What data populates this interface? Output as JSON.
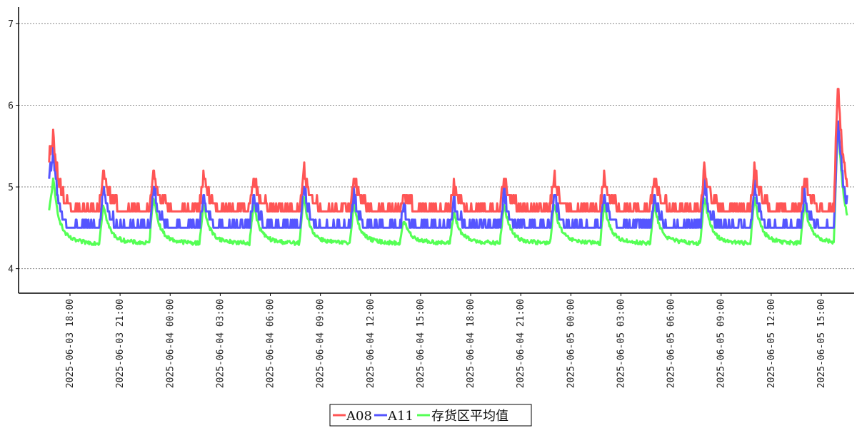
{
  "chart_data": {
    "type": "line",
    "title": "",
    "xlabel": "",
    "ylabel": "",
    "ylim": [
      3.7,
      7.2
    ],
    "yticks": [
      4,
      5,
      6,
      7
    ],
    "ygrid": "horizontal dotted",
    "legend_position": "bottom-center",
    "x_tick_labels": [
      "2025-06-03 18:00",
      "2025-06-03 21:00",
      "2025-06-04 00:00",
      "2025-06-04 03:00",
      "2025-06-04 06:00",
      "2025-06-04 09:00",
      "2025-06-04 12:00",
      "2025-06-04 15:00",
      "2025-06-04 18:00",
      "2025-06-04 21:00",
      "2025-06-05 00:00",
      "2025-06-05 03:00",
      "2025-06-05 06:00",
      "2025-06-05 09:00",
      "2025-06-05 12:00",
      "2025-06-05 15:00"
    ],
    "x_start": "2025-06-03 16:45",
    "x_end": "2025-06-05 16:35",
    "series": [
      {
        "name": "A08",
        "color": "#ff5555",
        "baseline": 4.7,
        "initial_level": 5.35,
        "peak_times": [
          "2025-06-03 17:00",
          "2025-06-03 20:00",
          "2025-06-03 23:00",
          "2025-06-04 02:00",
          "2025-06-04 05:00",
          "2025-06-04 08:00",
          "2025-06-04 11:00",
          "2025-06-04 14:00",
          "2025-06-04 17:00",
          "2025-06-04 20:00",
          "2025-06-04 23:00",
          "2025-06-05 02:00",
          "2025-06-05 05:00",
          "2025-06-05 08:00",
          "2025-06-05 11:00",
          "2025-06-05 14:00",
          "2025-06-05 16:00"
        ],
        "peak_values": [
          5.6,
          5.2,
          5.2,
          5.1,
          5.1,
          5.2,
          5.1,
          4.9,
          5.0,
          5.1,
          5.1,
          5.1,
          5.1,
          5.2,
          5.2,
          5.1,
          6.3
        ]
      },
      {
        "name": "A11",
        "color": "#5555ff",
        "baseline": 4.45,
        "initial_level": 5.1,
        "peak_times": [
          "2025-06-03 17:00",
          "2025-06-03 20:00",
          "2025-06-03 23:00",
          "2025-06-04 02:00",
          "2025-06-04 05:00",
          "2025-06-04 08:00",
          "2025-06-04 11:00",
          "2025-06-04 14:00",
          "2025-06-04 17:00",
          "2025-06-04 20:00",
          "2025-06-04 23:00",
          "2025-06-05 02:00",
          "2025-06-05 05:00",
          "2025-06-05 08:00",
          "2025-06-05 11:00",
          "2025-06-05 14:00",
          "2025-06-05 16:00"
        ],
        "peak_values": [
          5.4,
          5.0,
          5.0,
          4.9,
          4.9,
          5.0,
          4.9,
          4.7,
          4.8,
          4.9,
          4.9,
          4.9,
          4.9,
          5.0,
          5.0,
          4.9,
          5.9
        ]
      },
      {
        "name": "存货区平均值",
        "color": "#55ff55",
        "baseline": 4.35,
        "initial_level": 4.7,
        "peak_times": [
          "2025-06-03 17:00",
          "2025-06-03 20:00",
          "2025-06-03 23:00",
          "2025-06-04 02:00",
          "2025-06-04 05:00",
          "2025-06-04 08:00",
          "2025-06-04 11:00",
          "2025-06-04 14:00",
          "2025-06-04 17:00",
          "2025-06-04 20:00",
          "2025-06-04 23:00",
          "2025-06-05 02:00",
          "2025-06-05 05:00",
          "2025-06-05 08:00",
          "2025-06-05 11:00",
          "2025-06-05 14:00",
          "2025-06-05 16:00"
        ],
        "peak_values": [
          5.1,
          4.8,
          4.9,
          4.8,
          4.8,
          4.9,
          4.8,
          4.6,
          4.7,
          4.8,
          4.8,
          4.8,
          4.8,
          4.9,
          4.9,
          4.8,
          5.85
        ]
      }
    ]
  }
}
